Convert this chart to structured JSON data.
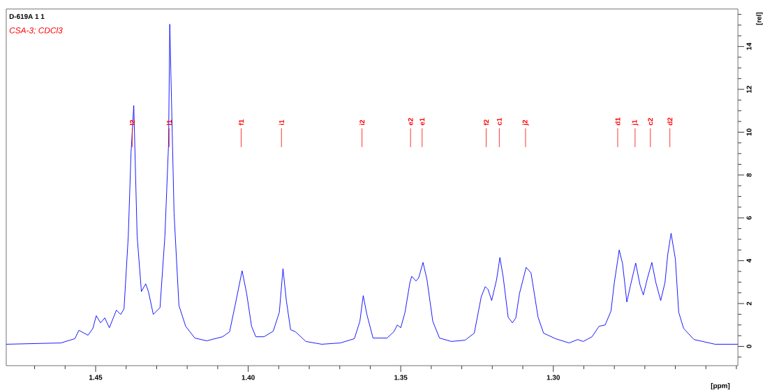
{
  "chart_data": {
    "type": "line",
    "title": "D-619A  1  1",
    "subtitle": "CSA-3; CDCl3",
    "xlabel": "[ppm]",
    "ylabel": "[rel]",
    "x": [
      1.4793,
      1.4614,
      1.4568,
      1.4555,
      1.4525,
      1.4509,
      1.4498,
      1.4484,
      1.447,
      1.4455,
      1.4432,
      1.4418,
      1.4407,
      1.4393,
      1.4384,
      1.4375,
      1.4364,
      1.435,
      1.4336,
      1.4327,
      1.4311,
      1.4289,
      1.4273,
      1.4261,
      1.4257,
      1.4243,
      1.4227,
      1.4205,
      1.4175,
      1.4136,
      1.4084,
      1.4061,
      1.4043,
      1.402,
      1.4005,
      1.3989,
      1.3975,
      1.3948,
      1.3918,
      1.3898,
      1.3886,
      1.3875,
      1.3861,
      1.3845,
      1.3811,
      1.3759,
      1.3698,
      1.3652,
      1.3634,
      1.3623,
      1.3611,
      1.3591,
      1.3545,
      1.3523,
      1.3511,
      1.35,
      1.3486,
      1.347,
      1.3464,
      1.345,
      1.3441,
      1.3427,
      1.3414,
      1.3395,
      1.3373,
      1.3334,
      1.3289,
      1.3259,
      1.3236,
      1.3223,
      1.3214,
      1.3202,
      1.3186,
      1.3175,
      1.3164,
      1.3148,
      1.3134,
      1.3123,
      1.3111,
      1.3089,
      1.3073,
      1.305,
      1.3032,
      1.2993,
      1.2948,
      1.292,
      1.2902,
      1.2873,
      1.285,
      1.283,
      1.2811,
      1.28,
      1.2784,
      1.2773,
      1.2759,
      1.2748,
      1.273,
      1.2716,
      1.2705,
      1.2691,
      1.2677,
      1.2664,
      1.2648,
      1.2634,
      1.2625,
      1.2614,
      1.26,
      1.2589,
      1.2573,
      1.2539,
      1.247,
      1.2395
    ],
    "series": [
      {
        "color": "#0000ff",
        "values": [
          0.1,
          0.16,
          0.36,
          0.75,
          0.52,
          0.84,
          1.43,
          1.1,
          1.33,
          0.87,
          1.69,
          1.49,
          1.75,
          5.15,
          9.04,
          11.24,
          5.15,
          2.56,
          2.92,
          2.56,
          1.49,
          1.81,
          5.15,
          9.46,
          15.04,
          6.22,
          1.91,
          0.94,
          0.39,
          0.26,
          0.45,
          0.68,
          1.91,
          3.53,
          2.46,
          0.94,
          0.45,
          0.45,
          0.71,
          1.59,
          3.63,
          2.14,
          0.78,
          0.68,
          0.23,
          0.1,
          0.16,
          0.36,
          1.17,
          2.37,
          1.49,
          0.39,
          0.39,
          0.68,
          1.0,
          0.87,
          1.59,
          2.98,
          3.27,
          3.05,
          3.21,
          3.92,
          3.11,
          1.17,
          0.39,
          0.23,
          0.29,
          0.62,
          2.33,
          2.79,
          2.66,
          2.14,
          3.11,
          4.15,
          3.21,
          1.36,
          1.1,
          1.33,
          2.46,
          3.69,
          3.43,
          1.36,
          0.62,
          0.36,
          0.16,
          0.32,
          0.23,
          0.45,
          0.94,
          1.0,
          1.65,
          2.98,
          4.5,
          3.86,
          2.07,
          2.79,
          3.89,
          2.88,
          2.4,
          3.21,
          3.92,
          2.98,
          2.14,
          2.98,
          4.28,
          5.28,
          4.08,
          1.59,
          0.84,
          0.32,
          0.1,
          0.1
        ]
      }
    ],
    "xlim": [
      1.4793,
      1.2395
    ],
    "ylim": [
      -0.9,
      15.75
    ],
    "xticks": [
      {
        "value": 1.47,
        "label": null
      },
      {
        "value": 1.46,
        "label": null
      },
      1.45,
      {
        "value": 1.44,
        "label": null
      },
      {
        "value": 1.43,
        "label": null
      },
      {
        "value": 1.42,
        "label": null
      },
      {
        "value": 1.41,
        "label": null
      },
      {
        "value": 1.4,
        "label": "1.40"
      },
      {
        "value": 1.39,
        "label": null
      },
      {
        "value": 1.38,
        "label": null
      },
      {
        "value": 1.37,
        "label": null
      },
      {
        "value": 1.36,
        "label": null
      },
      1.35,
      {
        "value": 1.34,
        "label": null
      },
      {
        "value": 1.33,
        "label": null
      },
      {
        "value": 1.32,
        "label": null
      },
      {
        "value": 1.31,
        "label": null
      },
      {
        "value": 1.3,
        "label": "1.30"
      },
      {
        "value": 1.29,
        "label": null
      },
      {
        "value": 1.28,
        "label": null
      },
      {
        "value": 1.27,
        "label": null
      },
      {
        "value": 1.26,
        "label": null
      },
      {
        "value": 1.25,
        "label": null
      },
      {
        "value": 1.24,
        "label": null
      }
    ],
    "yticks": [
      {
        "value": -0.5,
        "label": null
      },
      0,
      {
        "value": 0.5,
        "label": null
      },
      {
        "value": 1,
        "label": null
      },
      {
        "value": 1.5,
        "label": null
      },
      2,
      {
        "value": 2.5,
        "label": null
      },
      {
        "value": 3,
        "label": null
      },
      {
        "value": 3.5,
        "label": null
      },
      4,
      {
        "value": 4.5,
        "label": null
      },
      {
        "value": 5,
        "label": null
      },
      {
        "value": 5.5,
        "label": null
      },
      6,
      {
        "value": 6.5,
        "label": null
      },
      {
        "value": 7,
        "label": null
      },
      {
        "value": 7.5,
        "label": null
      },
      8,
      {
        "value": 8.5,
        "label": null
      },
      {
        "value": 9,
        "label": null
      },
      {
        "value": 9.5,
        "label": null
      },
      10,
      {
        "value": 10.5,
        "label": null
      },
      {
        "value": 11,
        "label": null
      },
      {
        "value": 11.5,
        "label": null
      },
      12,
      {
        "value": 12.5,
        "label": null
      },
      {
        "value": 13,
        "label": null
      },
      {
        "value": 13.5,
        "label": null
      },
      14,
      {
        "value": 14.5,
        "label": null
      },
      {
        "value": 15,
        "label": null
      },
      {
        "value": 15.5,
        "label": null
      }
    ],
    "annotations": [
      {
        "text": "l2",
        "x": 1.438
      },
      {
        "text": "l1",
        "x": 1.4259
      },
      {
        "text": "f1",
        "x": 1.4023
      },
      {
        "text": "i1",
        "x": 1.3891
      },
      {
        "text": "i2",
        "x": 1.3627
      },
      {
        "text": "e2",
        "x": 1.3468
      },
      {
        "text": "e1",
        "x": 1.343
      },
      {
        "text": "f2",
        "x": 1.322
      },
      {
        "text": "c1",
        "x": 1.3177
      },
      {
        "text": "j2",
        "x": 1.3091
      },
      {
        "text": "d1",
        "x": 1.2789
      },
      {
        "text": "j1",
        "x": 1.2732
      },
      {
        "text": "c2",
        "x": 1.2682
      },
      {
        "text": "d2",
        "x": 1.2618
      }
    ]
  }
}
